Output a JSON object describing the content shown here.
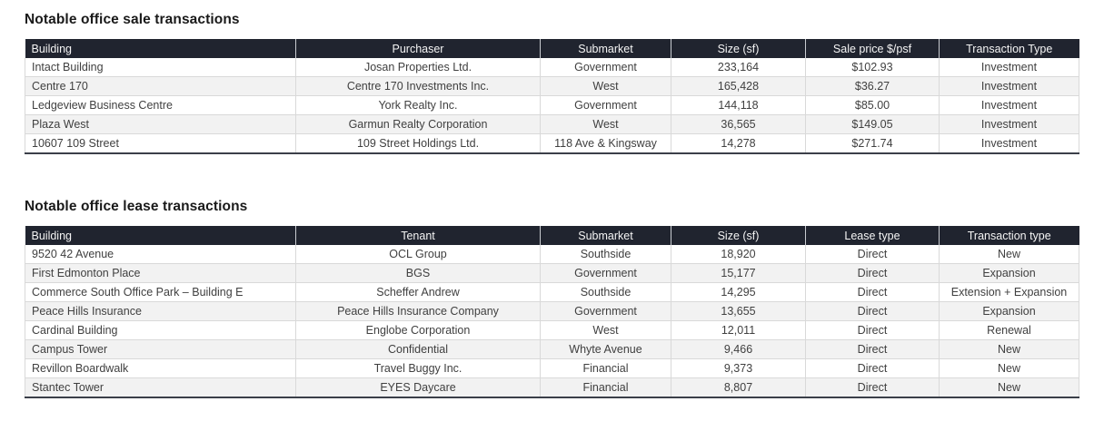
{
  "colors": {
    "header_bg": "#20242F",
    "header_text": "#F4F4F4",
    "row_alt_bg": "#F2F2F2",
    "grid_line": "#D9D9D9",
    "table_bottom_border": "#3B3F49",
    "body_text": "#404040",
    "title_text": "#1A1A1A"
  },
  "sale_table": {
    "title": "Notable office sale transactions",
    "columns": [
      "Building",
      "Purchaser",
      "Submarket",
      "Size (sf)",
      "Sale price $/psf",
      "Transaction Type"
    ],
    "rows": [
      [
        "Intact Building",
        "Josan Properties Ltd.",
        "Government",
        "233,164",
        "$102.93",
        "Investment"
      ],
      [
        "Centre 170",
        "Centre 170 Investments Inc.",
        "West",
        "165,428",
        "$36.27",
        "Investment"
      ],
      [
        "Ledgeview Business Centre",
        "York Realty Inc.",
        "Government",
        "144,118",
        "$85.00",
        "Investment"
      ],
      [
        "Plaza West",
        "Garmun Realty Corporation",
        "West",
        "36,565",
        "$149.05",
        "Investment"
      ],
      [
        "10607 109 Street",
        "109 Street Holdings Ltd.",
        "118 Ave & Kingsway",
        "14,278",
        "$271.74",
        "Investment"
      ]
    ]
  },
  "lease_table": {
    "title": "Notable office lease transactions",
    "columns": [
      "Building",
      "Tenant",
      "Submarket",
      "Size (sf)",
      "Lease type",
      "Transaction type"
    ],
    "rows": [
      [
        "9520 42 Avenue",
        "OCL Group",
        "Southside",
        "18,920",
        "Direct",
        "New"
      ],
      [
        "First Edmonton Place",
        "BGS",
        "Government",
        "15,177",
        "Direct",
        "Expansion"
      ],
      [
        "Commerce South Office Park – Building E",
        "Scheffer Andrew",
        "Southside",
        "14,295",
        "Direct",
        "Extension + Expansion"
      ],
      [
        "Peace Hills Insurance",
        "Peace Hills Insurance Company",
        "Government",
        "13,655",
        "Direct",
        "Expansion"
      ],
      [
        "Cardinal Building",
        "Englobe Corporation",
        "West",
        "12,011",
        "Direct",
        "Renewal"
      ],
      [
        "Campus Tower",
        "Confidential",
        "Whyte Avenue",
        "9,466",
        "Direct",
        "New"
      ],
      [
        "Revillon Boardwalk",
        "Travel Buggy Inc.",
        "Financial",
        "9,373",
        "Direct",
        "New"
      ],
      [
        "Stantec Tower",
        "EYES Daycare",
        "Financial",
        "8,807",
        "Direct",
        "New"
      ]
    ]
  }
}
